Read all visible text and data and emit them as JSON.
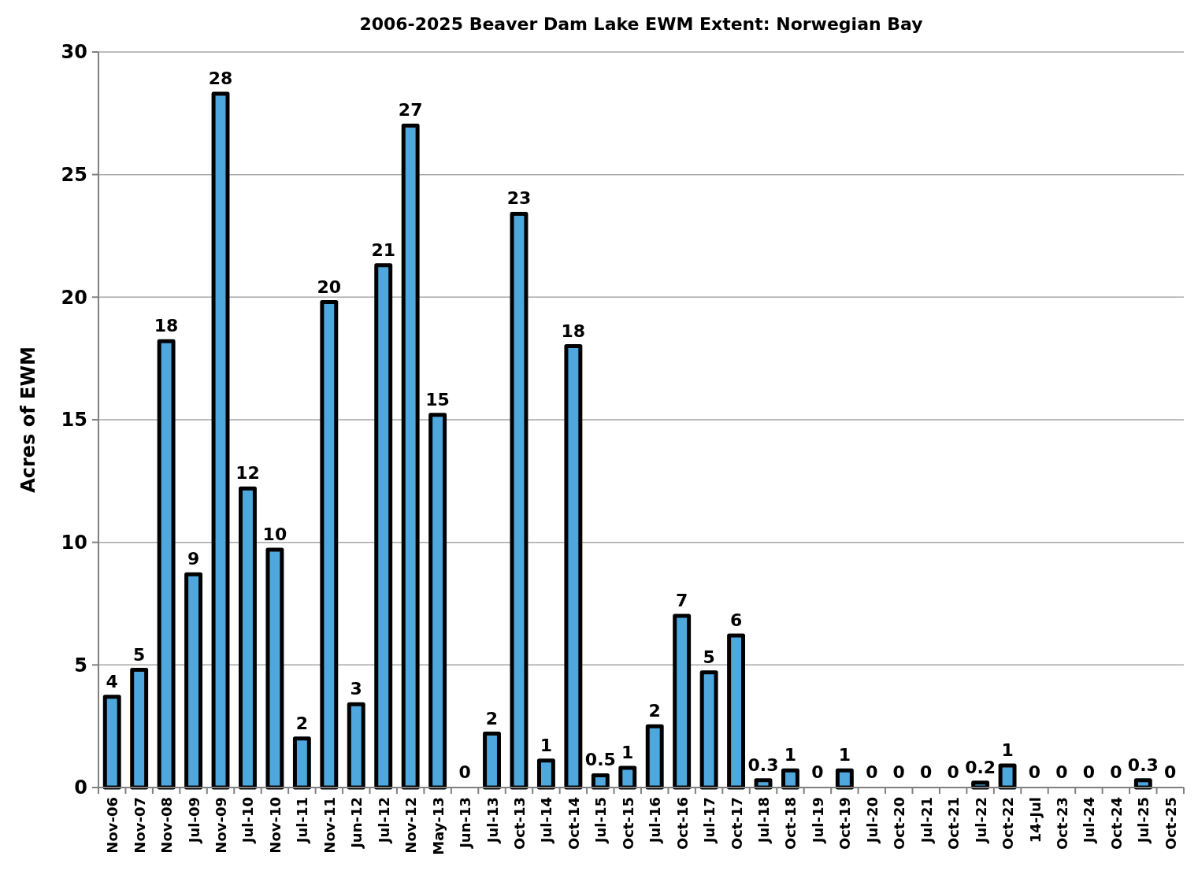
{
  "chart_data": {
    "type": "bar",
    "title": "2006-2025 Beaver Dam Lake EWM Extent:  Norwegian Bay",
    "ylabel": "Acres of EWM",
    "categories": [
      "Nov-06",
      "Nov-07",
      "Nov-08",
      "Jul-09",
      "Nov-09",
      "Jul-10",
      "Nov-10",
      "Jul-11",
      "Nov-11",
      "Jun-12",
      "Jul-12",
      "Nov-12",
      "May-13",
      "Jun-13",
      "Jul-13",
      "Oct-13",
      "Jul-14",
      "Oct-14",
      "Jul-15",
      "Oct-15",
      "Jul-16",
      "Oct-16",
      "Jul-17",
      "Oct-17",
      "Jul-18",
      "Oct-18",
      "Jul-19",
      "Oct-19",
      "Jul-20",
      "Oct-20",
      "Jul-21",
      "Oct-21",
      "Jul-22",
      "Oct-22",
      "14-Jul",
      "Oct-23",
      "Jul-24",
      "Oct-24",
      "Jul-25",
      "Oct-25"
    ],
    "values": [
      3.7,
      4.8,
      18.2,
      8.7,
      28.3,
      12.2,
      9.7,
      2.0,
      19.8,
      3.4,
      21.3,
      27.0,
      15.2,
      0,
      2.2,
      23.4,
      1.1,
      18.0,
      0.5,
      0.8,
      2.5,
      7.0,
      4.7,
      6.2,
      0.3,
      0.7,
      0,
      0.7,
      0,
      0,
      0,
      0,
      0.2,
      0.9,
      0,
      0,
      0,
      0,
      0.3,
      0
    ],
    "value_labels": [
      "4",
      "5",
      "18",
      "9",
      "28",
      "12",
      "10",
      "2",
      "20",
      "3",
      "21",
      "27",
      "15",
      "0",
      "2",
      "23",
      "1",
      "18",
      "0.5",
      "1",
      "2",
      "7",
      "5",
      "6",
      "0.3",
      "1",
      "0",
      "1",
      "0",
      "0",
      "0",
      "0",
      "0.2",
      "1",
      "0",
      "0",
      "0",
      "0",
      "0.3",
      "0"
    ],
    "color": "#4ea8de",
    "ylim": [
      0,
      30
    ],
    "yticks": [
      0,
      5,
      10,
      15,
      20,
      25,
      30
    ],
    "grid": "y"
  }
}
